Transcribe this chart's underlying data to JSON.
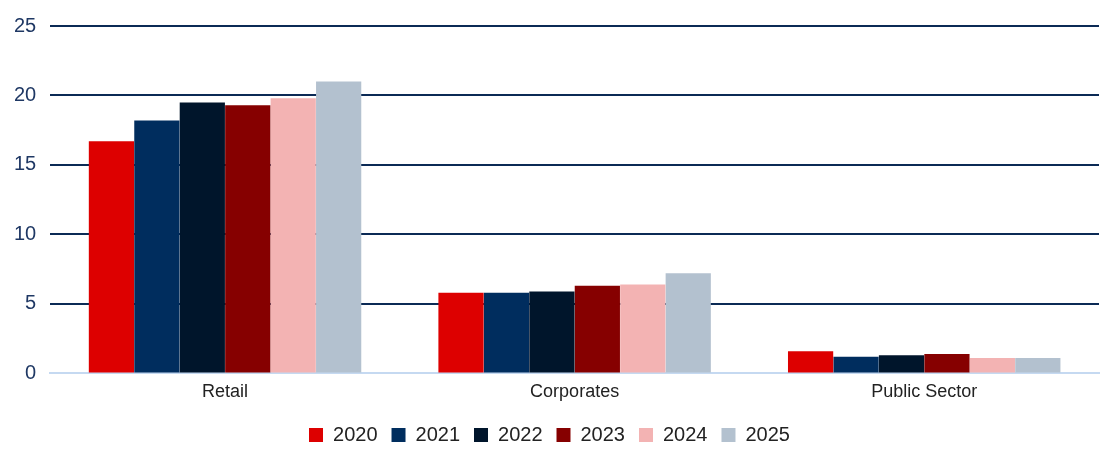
{
  "chart_data": {
    "type": "bar",
    "categories": [
      "Retail",
      "Corporates",
      "Public Sector"
    ],
    "series": [
      {
        "name": "2020",
        "color": "#dd0000",
        "values": [
          16.7,
          5.8,
          1.6
        ]
      },
      {
        "name": "2021",
        "color": "#002d5e",
        "values": [
          18.2,
          5.8,
          1.2
        ]
      },
      {
        "name": "2022",
        "color": "#00152b",
        "values": [
          19.5,
          5.9,
          1.3
        ]
      },
      {
        "name": "2023",
        "color": "#860000",
        "values": [
          19.3,
          6.3,
          1.4
        ]
      },
      {
        "name": "2024",
        "color": "#f3b3b3",
        "values": [
          19.8,
          6.4,
          1.1
        ]
      },
      {
        "name": "2025",
        "color": "#b3c1cf",
        "values": [
          21.0,
          7.2,
          1.1
        ]
      }
    ],
    "ylim": [
      0,
      25
    ],
    "yticks": [
      0,
      5,
      10,
      15,
      20,
      25
    ],
    "grid": "y",
    "legend": "bottom"
  }
}
